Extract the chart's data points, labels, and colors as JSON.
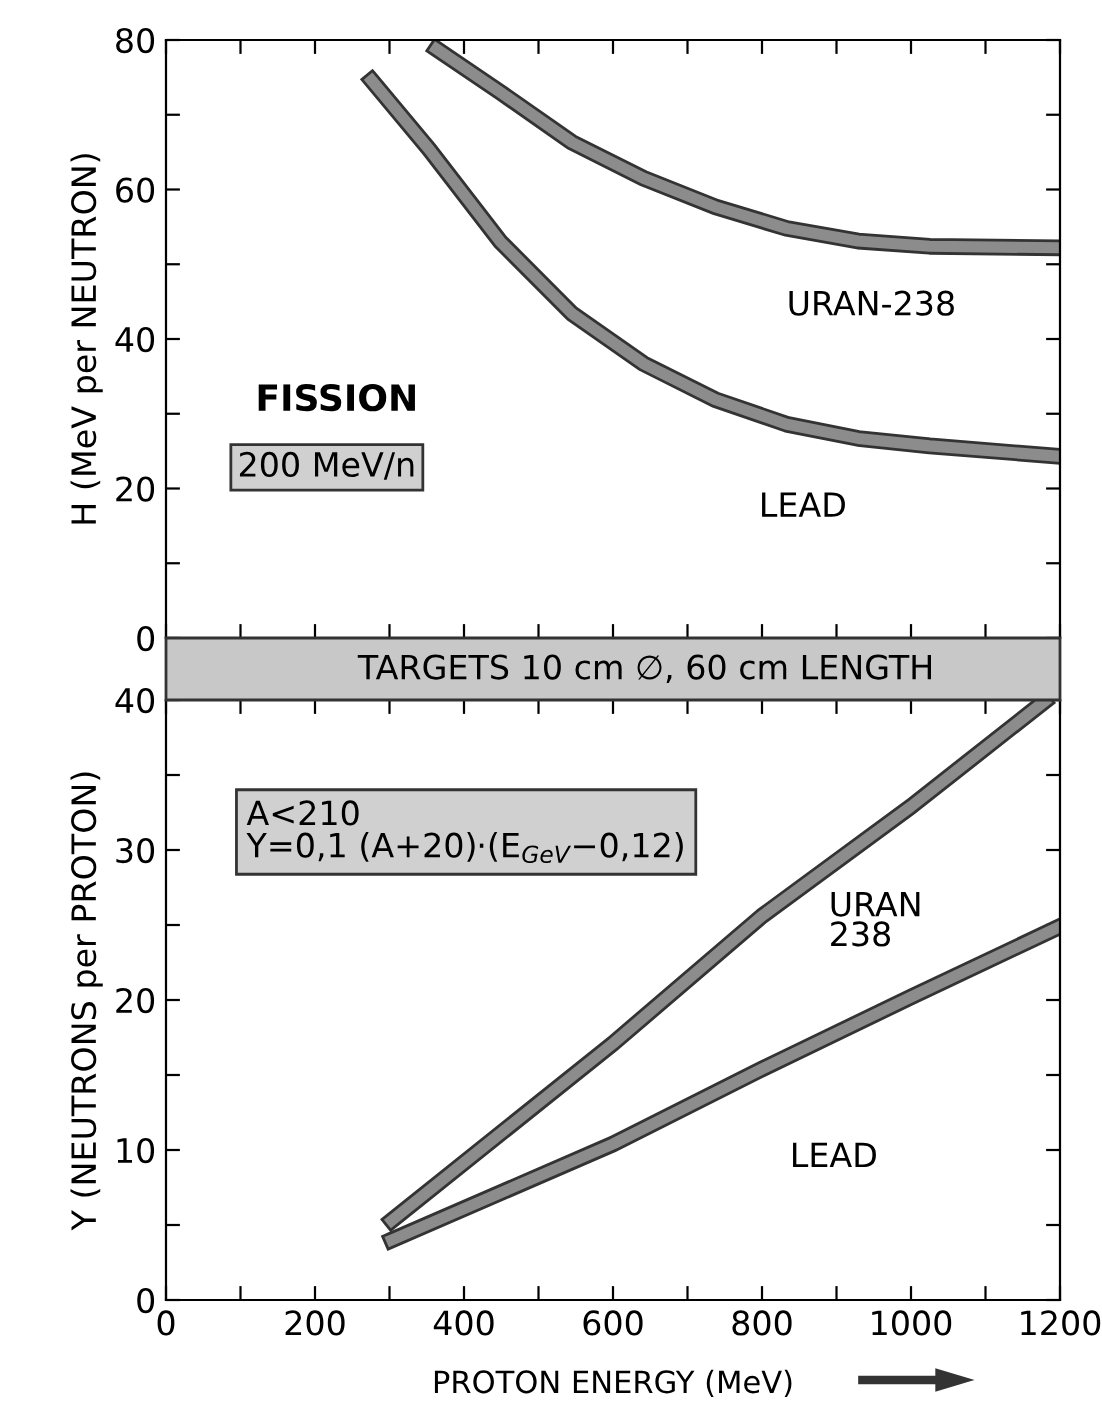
{
  "chart_data": [
    {
      "type": "line",
      "ylabel": "H (MeV per NEUTRON)",
      "xlim": [
        0,
        1200
      ],
      "ylim": [
        0,
        80
      ],
      "xticks": [
        {
          "value": 0,
          "label": null
        },
        {
          "value": 100,
          "label": null
        },
        {
          "value": 200,
          "label": null
        },
        {
          "value": 300,
          "label": null
        },
        {
          "value": 400,
          "label": null
        },
        {
          "value": 500,
          "label": null
        },
        {
          "value": 600,
          "label": null
        },
        {
          "value": 700,
          "label": null
        },
        {
          "value": 800,
          "label": null
        },
        {
          "value": 900,
          "label": null
        },
        {
          "value": 1000,
          "label": null
        },
        {
          "value": 1100,
          "label": null
        },
        {
          "value": 1200,
          "label": null
        }
      ],
      "yticks": [
        0,
        {
          "value": 10,
          "label": null
        },
        20,
        {
          "value": 30,
          "label": null
        },
        40,
        {
          "value": 50,
          "label": null
        },
        60,
        {
          "value": 70,
          "label": null
        },
        80
      ],
      "tick_labels": "y",
      "grid": false,
      "legend": false,
      "marker": "none",
      "line_style": "solid",
      "series": [
        {
          "name": "URAN-238",
          "color": "#8c8c8c",
          "x": [
            363,
            449,
            545,
            641,
            737,
            833,
            929,
            1025,
            1200
          ],
          "values": [
            78.8,
            73,
            66.3,
            61.5,
            57.7,
            54.8,
            53.1,
            52.4,
            52.2
          ]
        },
        {
          "name": "LEAD",
          "color": "#8c8c8c",
          "x": [
            276,
            353,
            449,
            545,
            641,
            737,
            833,
            929,
            1025,
            1200
          ],
          "values": [
            74.6,
            65.4,
            53,
            43.4,
            36.7,
            31.9,
            28.6,
            26.7,
            25.7,
            24.3
          ]
        }
      ],
      "annotations": [
        "FISSION",
        "200 MeV/n",
        "TARGETS 10 cm ∅, 60 cm LENGTH"
      ]
    },
    {
      "type": "line",
      "xlabel": "PROTON ENERGY (MeV)",
      "ylabel": "Y (NEUTRONS per PROTON)",
      "xlim": [
        0,
        1200
      ],
      "ylim": [
        0,
        40
      ],
      "xticks": [
        0,
        {
          "value": 100,
          "label": null
        },
        200,
        {
          "value": 300,
          "label": null
        },
        400,
        {
          "value": 500,
          "label": null
        },
        600,
        {
          "value": 700,
          "label": null
        },
        800,
        {
          "value": 900,
          "label": null
        },
        1000,
        {
          "value": 1100,
          "label": null
        },
        1200
      ],
      "yticks": [
        0,
        {
          "value": 5,
          "label": null
        },
        10,
        {
          "value": 15,
          "label": null
        },
        20,
        {
          "value": 25,
          "label": null
        },
        30,
        {
          "value": 35,
          "label": null
        },
        40
      ],
      "grid": false,
      "legend": false,
      "marker": "none",
      "line_style": "solid",
      "series": [
        {
          "name": "URAN\n238",
          "color": "#8c8c8c",
          "x": [
            303,
            600,
            800,
            1000,
            1179
          ],
          "values": [
            5.3,
            17.1,
            25.6,
            32.9,
            39.9
          ]
        },
        {
          "name": "LEAD",
          "color": "#8c8c8c",
          "x": [
            303,
            600,
            800,
            1000,
            1200
          ],
          "values": [
            4.0,
            10.4,
            15.4,
            20.2,
            24.9
          ]
        }
      ],
      "annotations": [
        "A<210\nY=0,1 (A+20)·(E$_{GeV}$−0,12)"
      ]
    }
  ]
}
